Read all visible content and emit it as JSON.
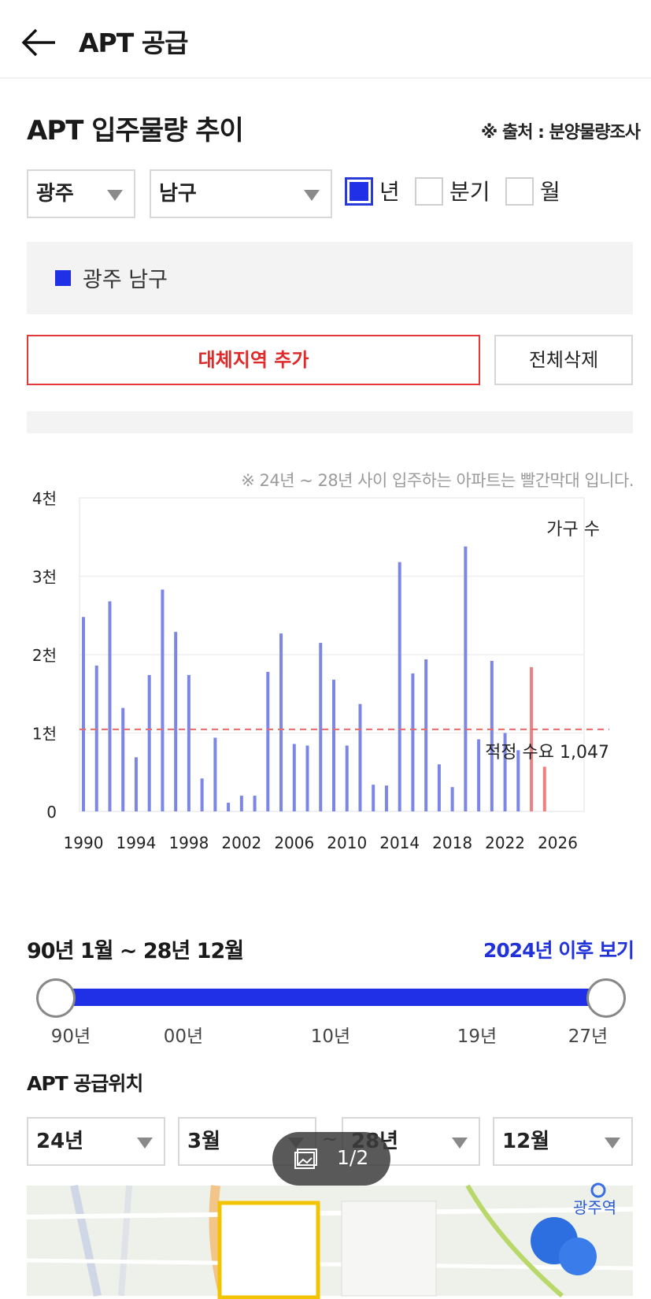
{
  "appbar": {
    "title": "APT 공급"
  },
  "section": {
    "title": "APT 입주물량 추이",
    "source": "※ 출처 : 분양물량조사"
  },
  "filters": {
    "region": "광주",
    "district": "남구",
    "periods": [
      {
        "label": "년",
        "checked": true
      },
      {
        "label": "분기",
        "checked": false
      },
      {
        "label": "월",
        "checked": false
      }
    ]
  },
  "legend": {
    "label": "광주 남구",
    "color": "#1f30e6"
  },
  "buttons": {
    "add_region": "대체지역 추가",
    "delete_all": "전체삭제"
  },
  "chart_note": "※ 24년 ~ 28년 사이 입주하는 아파트는 빨간막대 입니다.",
  "chart_data": {
    "type": "bar",
    "unit_label": "가구 수",
    "y_ticks": [
      "0",
      "1천",
      "2천",
      "3천",
      "4천"
    ],
    "ylim": [
      0,
      4000
    ],
    "x_ticks": [
      "1990",
      "1994",
      "1998",
      "2002",
      "2006",
      "2010",
      "2014",
      "2018",
      "2022",
      "2026"
    ],
    "xlim": [
      1990,
      2028
    ],
    "categories": [
      1990,
      1991,
      1992,
      1993,
      1994,
      1995,
      1996,
      1997,
      1998,
      1999,
      2000,
      2001,
      2002,
      2003,
      2004,
      2005,
      2006,
      2007,
      2008,
      2009,
      2010,
      2011,
      2012,
      2013,
      2014,
      2015,
      2016,
      2017,
      2018,
      2019,
      2020,
      2021,
      2022,
      2023,
      2024,
      2025
    ],
    "values": [
      2480,
      1860,
      2680,
      1320,
      690,
      1740,
      2830,
      2290,
      1740,
      420,
      940,
      110,
      200,
      200,
      1780,
      2270,
      860,
      840,
      2150,
      1680,
      840,
      1370,
      340,
      330,
      3180,
      1760,
      1940,
      600,
      310,
      3380,
      920,
      1920,
      1000,
      780,
      1840,
      570
    ],
    "highlight_colors": {
      "normal": "#7b86e6",
      "future": "#f07f7f"
    },
    "future_from": 2024,
    "reference": {
      "label": "적정 수요 1,047",
      "value": 1047,
      "color": "#e86a6a"
    }
  },
  "range": {
    "label": "90년 1월 ~ 28년 12월",
    "after_link": "2024년 이후 보기",
    "ticks": [
      "90년",
      "00년",
      "10년",
      "19년",
      "27년"
    ]
  },
  "supply_location": {
    "title": "APT 공급위치",
    "from_year": "24년",
    "from_month": "3월",
    "to_year": "28년",
    "to_month": "12월",
    "separator": "~"
  },
  "map": {
    "station_label": "광주역"
  },
  "pager": {
    "label": "1/2"
  }
}
